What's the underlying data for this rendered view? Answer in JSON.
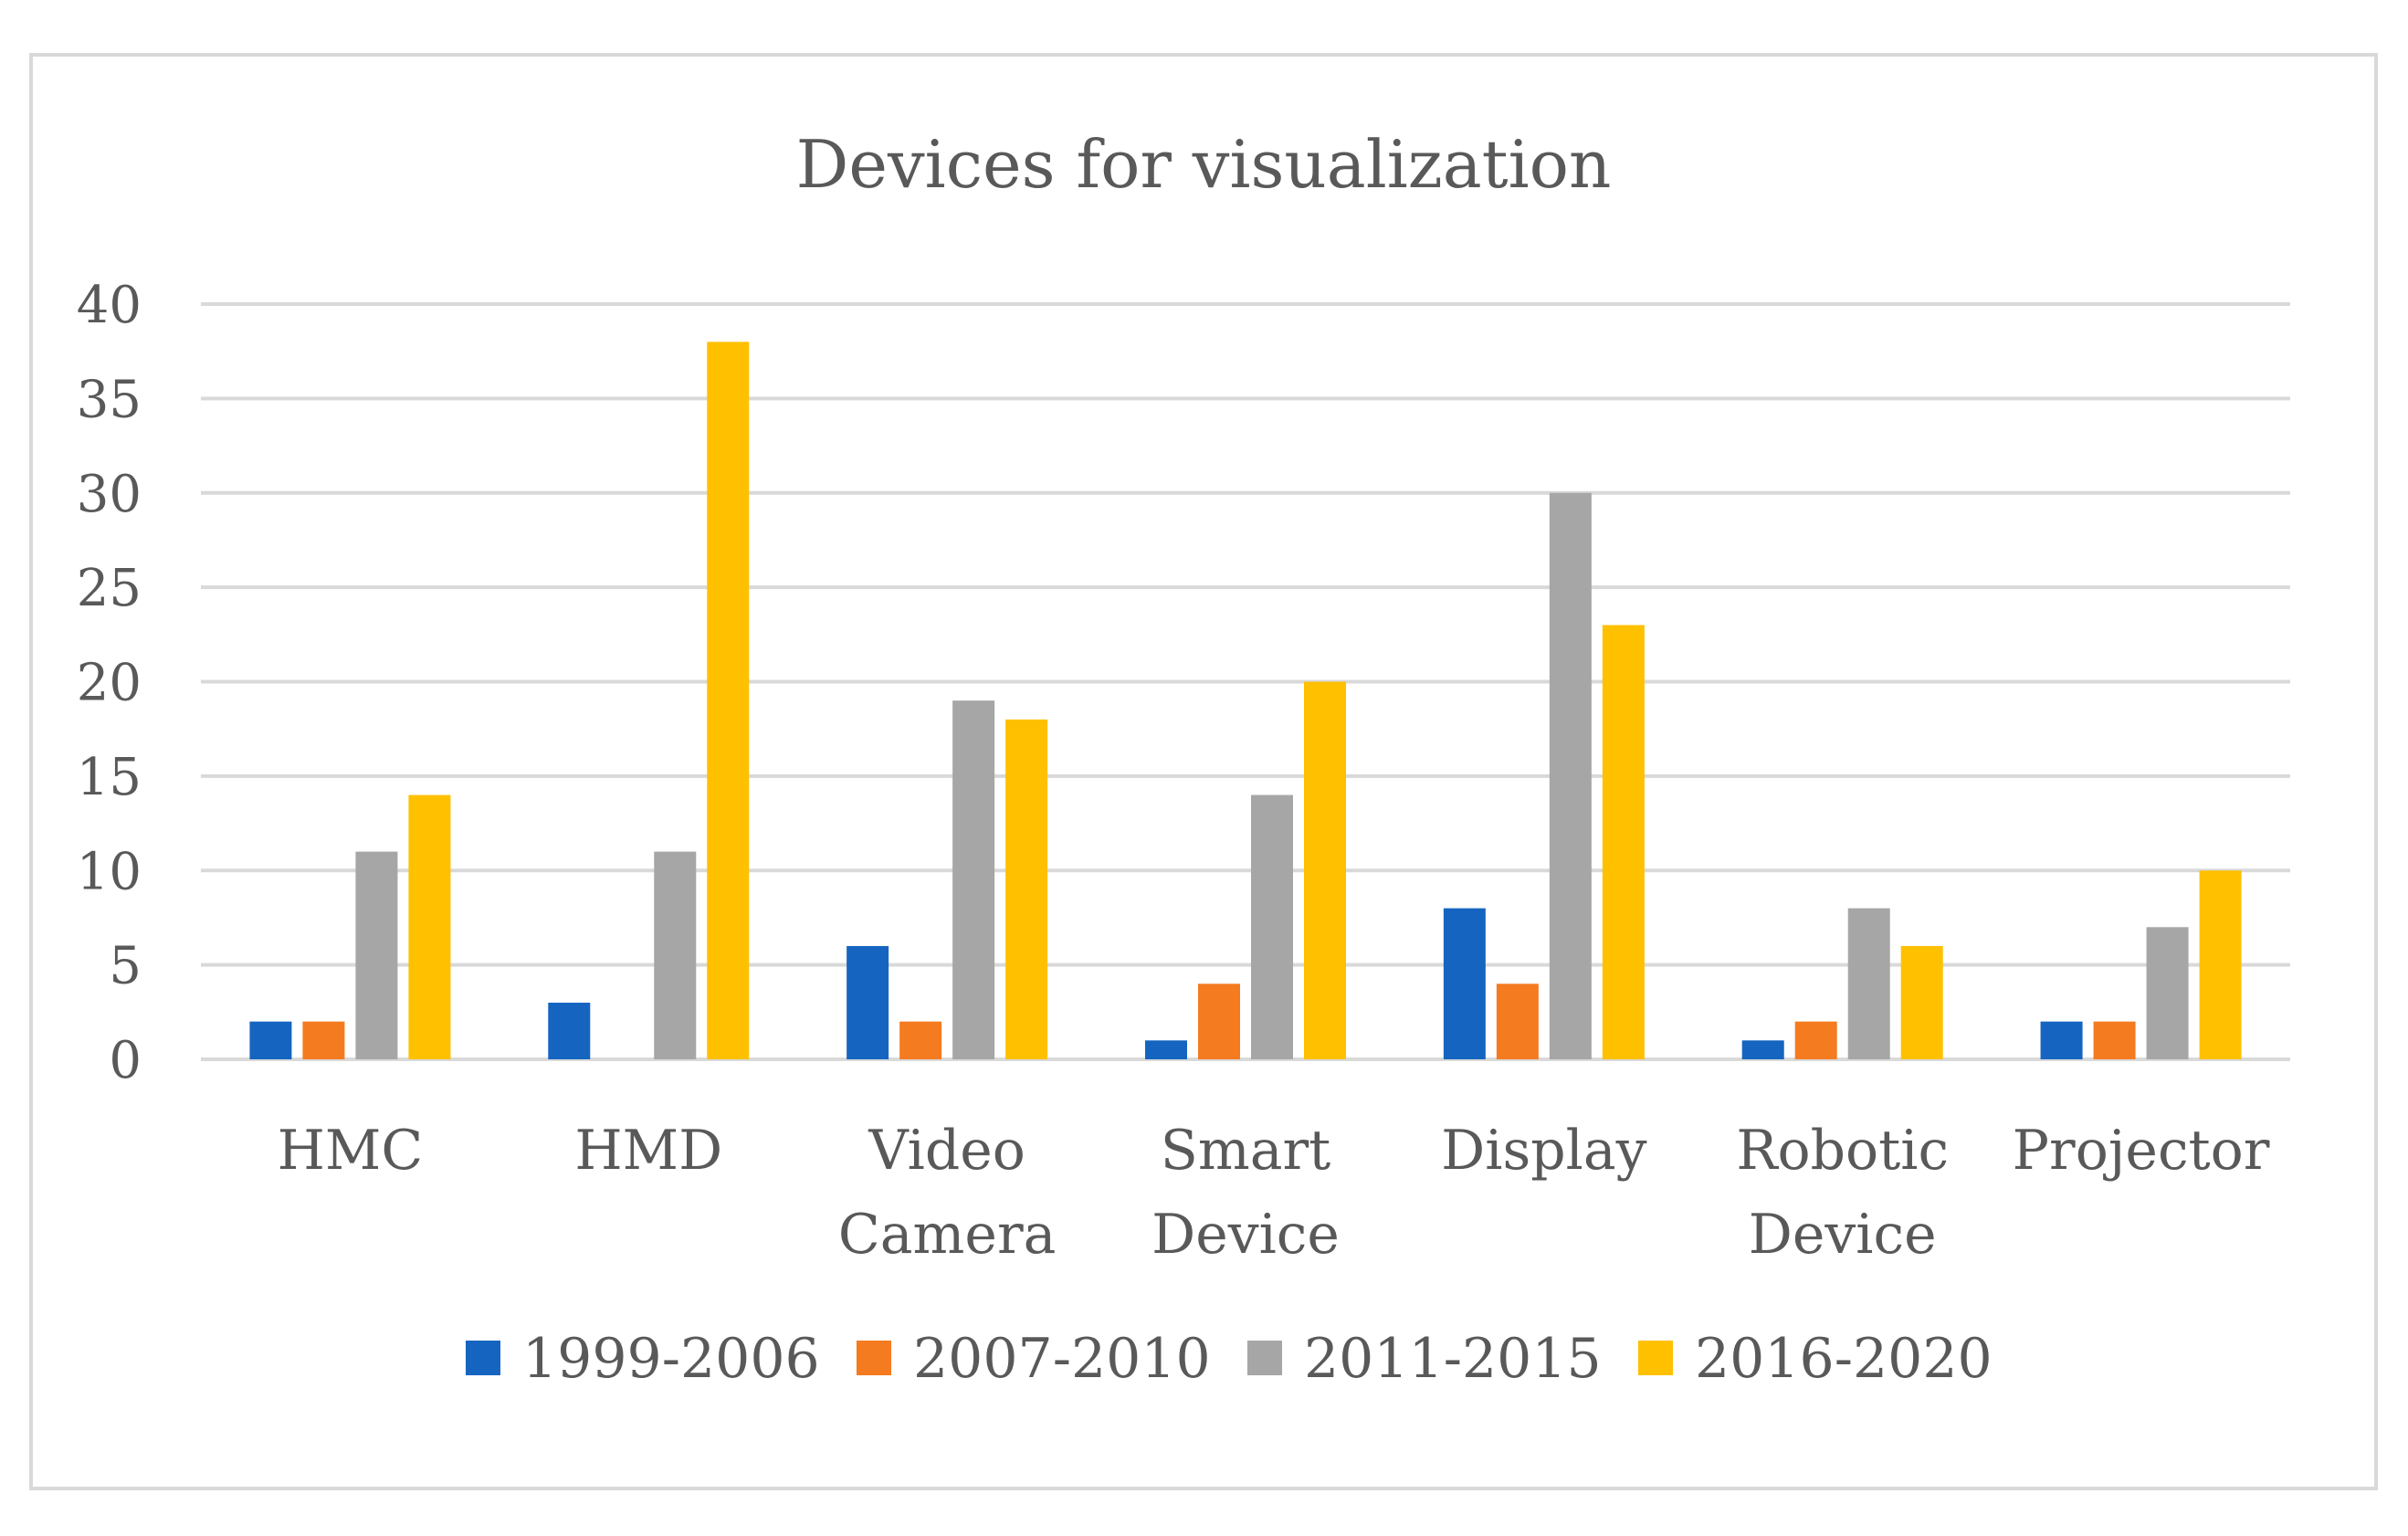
{
  "chart_data": {
    "type": "bar",
    "title": "Devices for visualization",
    "categories": [
      [
        "HMC"
      ],
      [
        "HMD"
      ],
      [
        "Video",
        "Camera"
      ],
      [
        "Smart",
        "Device"
      ],
      [
        "Display"
      ],
      [
        "Robotic",
        "Device"
      ],
      [
        "Projector"
      ]
    ],
    "series": [
      {
        "name": "1999-2006",
        "color": "#1565c0",
        "values": [
          2,
          3,
          6,
          1,
          8,
          1,
          2
        ]
      },
      {
        "name": "2007-2010",
        "color": "#f47b20",
        "values": [
          2,
          0,
          2,
          4,
          4,
          2,
          2
        ]
      },
      {
        "name": "2011-2015",
        "color": "#a6a6a6",
        "values": [
          11,
          11,
          19,
          14,
          30,
          8,
          7
        ]
      },
      {
        "name": "2016-2020",
        "color": "#ffc000",
        "values": [
          14,
          38,
          18,
          20,
          23,
          6,
          10
        ]
      }
    ],
    "ylim": [
      0,
      40
    ],
    "yticks": [
      "0",
      "5",
      "10",
      "15",
      "20",
      "25",
      "30",
      "35",
      "40"
    ],
    "xlabel": "",
    "ylabel": "",
    "grid": true,
    "legend": "bottom"
  }
}
